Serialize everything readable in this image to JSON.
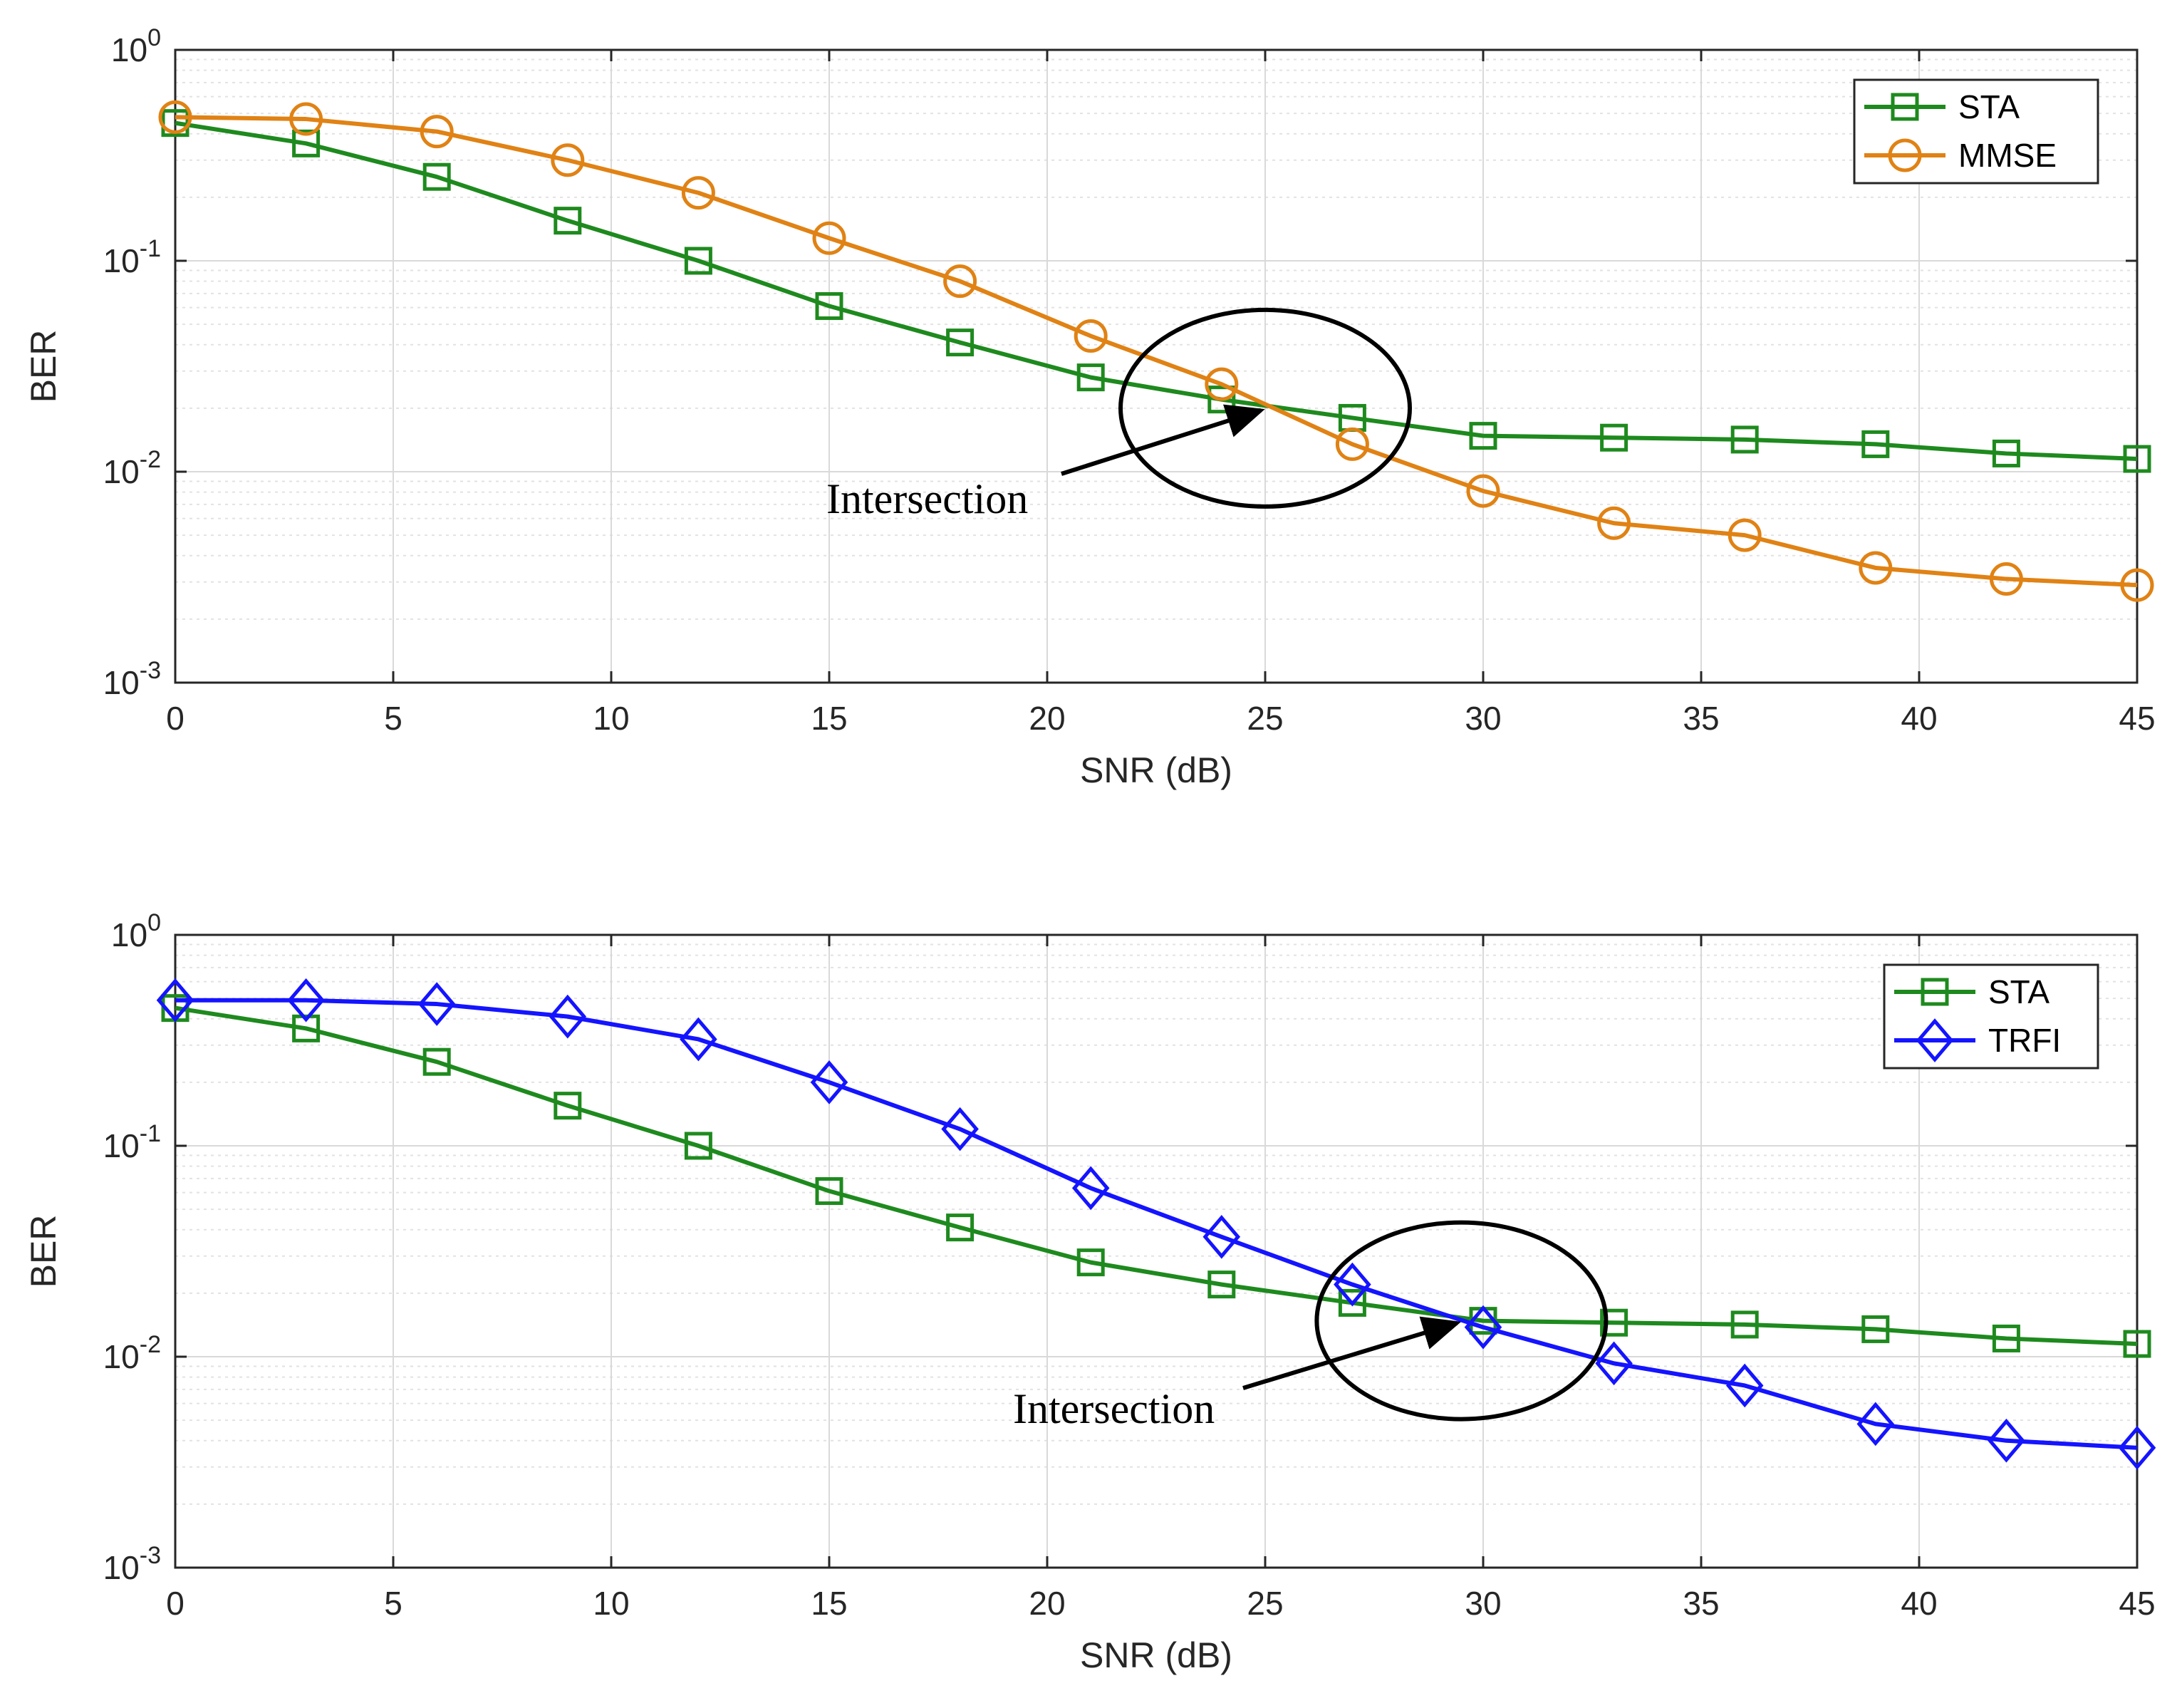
{
  "chart_data": [
    {
      "type": "line",
      "yscale": "log",
      "xlabel": "SNR (dB)",
      "ylabel": "BER",
      "xlim": [
        0,
        45
      ],
      "ylim": [
        0.001,
        1
      ],
      "grid": true,
      "legend_location": "top-right",
      "x_ticks": [
        "0",
        "5",
        "10",
        "15",
        "20",
        "25",
        "30",
        "35",
        "40",
        "45"
      ],
      "y_ticks": [
        {
          "base": "10",
          "exp": "0"
        },
        {
          "base": "10",
          "exp": "-1"
        },
        {
          "base": "10",
          "exp": "-2"
        },
        {
          "base": "10",
          "exp": "-3"
        }
      ],
      "x": [
        0,
        3,
        6,
        9,
        12,
        15,
        18,
        21,
        24,
        27,
        30,
        33,
        36,
        39,
        42,
        45
      ],
      "series": [
        {
          "name": "STA",
          "color": "#1e8a1e",
          "marker": "square",
          "values": [
            0.45,
            0.36,
            0.25,
            0.155,
            0.1,
            0.061,
            0.041,
            0.028,
            0.022,
            0.018,
            0.0148,
            0.0145,
            0.0142,
            0.0135,
            0.0122,
            0.0115
          ]
        },
        {
          "name": "MMSE",
          "color": "#e08214",
          "marker": "circle",
          "values": [
            0.48,
            0.47,
            0.41,
            0.3,
            0.21,
            0.128,
            0.08,
            0.044,
            0.026,
            0.0135,
            0.0081,
            0.0057,
            0.005,
            0.0035,
            0.0031,
            0.0029
          ]
        }
      ],
      "annotation": {
        "text": "Intersection",
        "x": 25,
        "y": 0.02
      }
    },
    {
      "type": "line",
      "yscale": "log",
      "xlabel": "SNR (dB)",
      "ylabel": "BER",
      "xlim": [
        0,
        45
      ],
      "ylim": [
        0.001,
        1
      ],
      "grid": true,
      "legend_location": "top-right",
      "x_ticks": [
        "0",
        "5",
        "10",
        "15",
        "20",
        "25",
        "30",
        "35",
        "40",
        "45"
      ],
      "y_ticks": [
        {
          "base": "10",
          "exp": "0"
        },
        {
          "base": "10",
          "exp": "-1"
        },
        {
          "base": "10",
          "exp": "-2"
        },
        {
          "base": "10",
          "exp": "-3"
        }
      ],
      "x": [
        0,
        3,
        6,
        9,
        12,
        15,
        18,
        21,
        24,
        27,
        30,
        33,
        36,
        39,
        42,
        45
      ],
      "series": [
        {
          "name": "STA",
          "color": "#1e8a1e",
          "marker": "square",
          "values": [
            0.45,
            0.36,
            0.25,
            0.155,
            0.1,
            0.061,
            0.041,
            0.028,
            0.022,
            0.018,
            0.0148,
            0.0145,
            0.0142,
            0.0135,
            0.0122,
            0.0115
          ]
        },
        {
          "name": "TRFI",
          "color": "#1414ff",
          "marker": "diamond",
          "values": [
            0.49,
            0.49,
            0.47,
            0.41,
            0.32,
            0.2,
            0.12,
            0.063,
            0.037,
            0.022,
            0.0138,
            0.0093,
            0.0073,
            0.0048,
            0.004,
            0.0037
          ]
        }
      ],
      "annotation": {
        "text": "Intersection",
        "x": 29.5,
        "y": 0.0148
      }
    }
  ]
}
